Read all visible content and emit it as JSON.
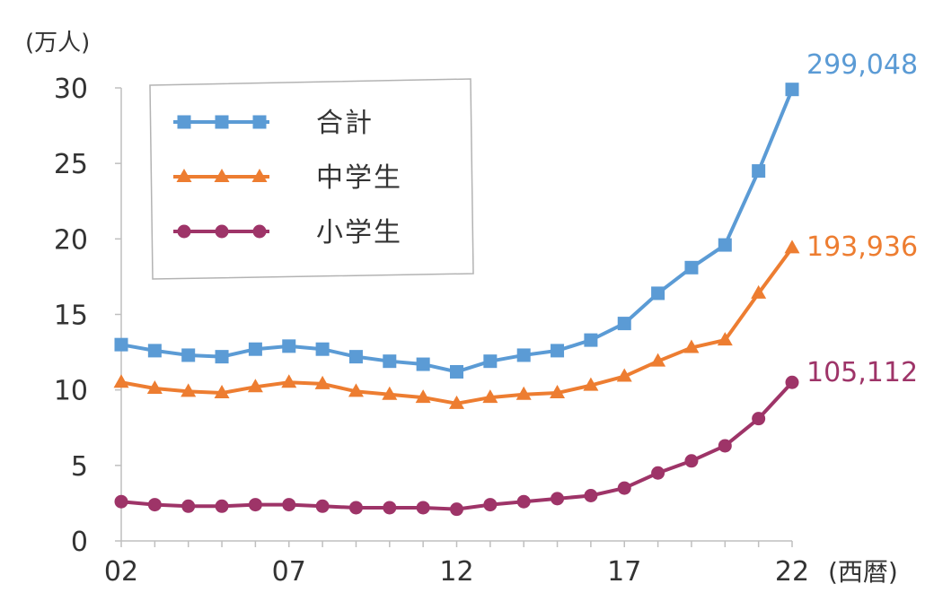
{
  "chart_data": {
    "type": "line",
    "unit_label": "(万人)",
    "x_axis_suffix": "(西暦)",
    "x": [
      "02",
      "03",
      "04",
      "05",
      "06",
      "07",
      "08",
      "09",
      "10",
      "11",
      "12",
      "13",
      "14",
      "15",
      "16",
      "17",
      "18",
      "19",
      "20",
      "21",
      "22"
    ],
    "x_tick_labels": [
      "02",
      "07",
      "12",
      "17",
      "22"
    ],
    "ylim": [
      0,
      30
    ],
    "y_ticks": [
      0,
      5,
      10,
      15,
      20,
      25,
      30
    ],
    "grid": false,
    "legend_position": "top-left",
    "series": [
      {
        "name": "合計",
        "color": "#5b9bd5",
        "marker": "square",
        "end_label": "299,048",
        "values": [
          13.0,
          12.6,
          12.3,
          12.2,
          12.7,
          12.9,
          12.7,
          12.2,
          11.9,
          11.7,
          11.2,
          11.9,
          12.3,
          12.6,
          13.3,
          14.4,
          16.4,
          18.1,
          19.6,
          24.5,
          29.9
        ]
      },
      {
        "name": "中学生",
        "color": "#ed7d31",
        "marker": "triangle",
        "end_label": "193,936",
        "values": [
          10.5,
          10.1,
          9.9,
          9.8,
          10.2,
          10.5,
          10.4,
          9.9,
          9.7,
          9.5,
          9.1,
          9.5,
          9.7,
          9.8,
          10.3,
          10.9,
          11.9,
          12.8,
          13.3,
          16.4,
          19.4
        ]
      },
      {
        "name": "小学生",
        "color": "#9e3468",
        "marker": "circle",
        "end_label": "105,112",
        "values": [
          2.6,
          2.4,
          2.3,
          2.3,
          2.4,
          2.4,
          2.3,
          2.2,
          2.2,
          2.2,
          2.1,
          2.4,
          2.6,
          2.8,
          3.0,
          3.5,
          4.5,
          5.3,
          6.3,
          8.1,
          10.5
        ]
      }
    ]
  }
}
